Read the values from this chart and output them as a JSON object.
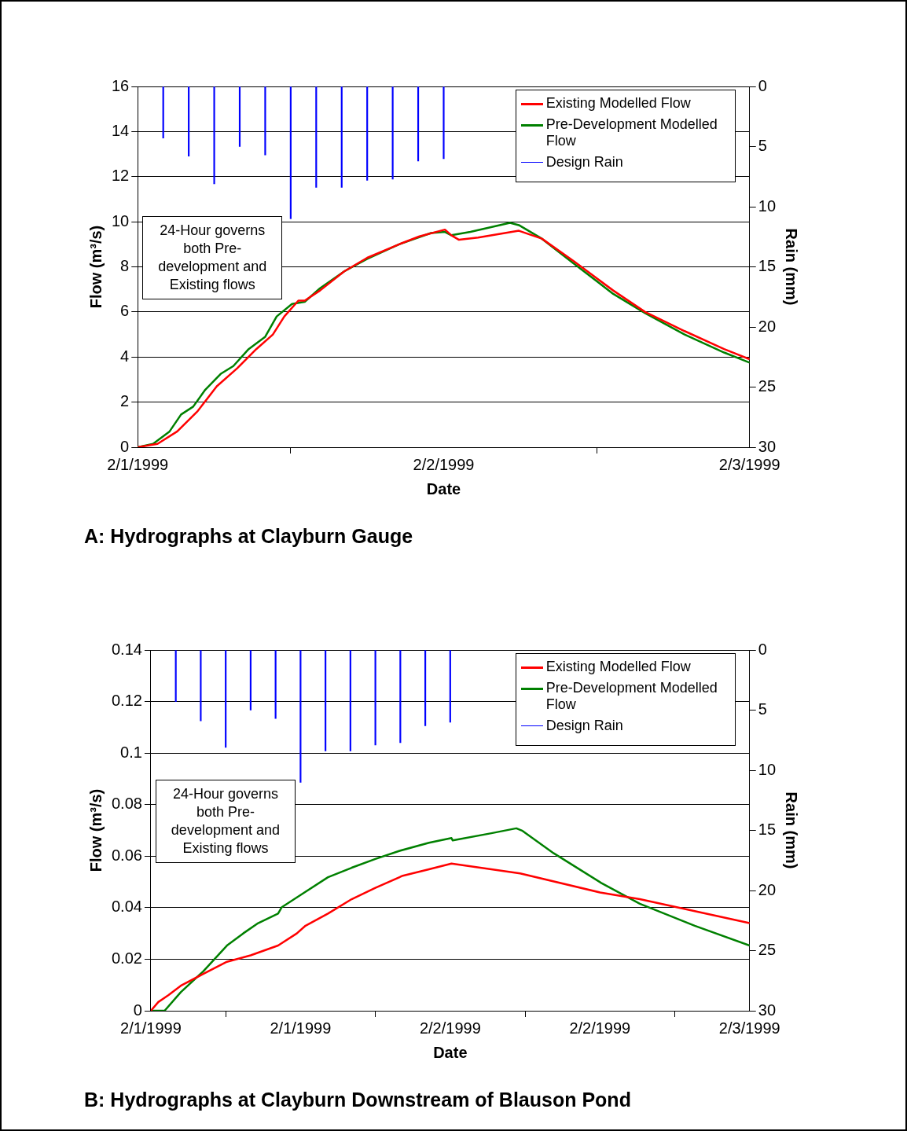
{
  "chart_data": [
    {
      "type": "line",
      "title": "A: Hydrographs at Clayburn Gauge",
      "xlabel": "Date",
      "ylabel": "Flow (m³/s)",
      "y2label": "Rain (mm)",
      "xlim": [
        "1999-02-01",
        "1999-02-03"
      ],
      "xticks": [
        {
          "value": "1999-02-01",
          "label": "2/1/1999"
        },
        {
          "value": "1999-02-02",
          "label": "2/2/1999"
        },
        {
          "value": "1999-02-03",
          "label": "2/3/1999"
        }
      ],
      "ylim": [
        0,
        16
      ],
      "yticks": [
        0,
        2,
        4,
        6,
        8,
        10,
        12,
        14,
        16
      ],
      "y2lim": [
        30,
        0
      ],
      "y2ticks": [
        0,
        5,
        10,
        15,
        20,
        25,
        30
      ],
      "grid": "y",
      "legend": "top right",
      "annotations": [
        "24-Hour governs both Pre-development and Existing flows"
      ],
      "series": [
        {
          "name": "Existing Modelled Flow",
          "color": "#ff0000",
          "x": [
            "1999-02-01T00:00",
            "1999-02-01T01:33",
            "1999-02-01T03:06",
            "1999-02-01T04:42",
            "1999-02-01T06:12",
            "1999-02-01T07:48",
            "1999-02-01T09:18",
            "1999-02-01T10:36",
            "1999-02-01T11:30",
            "1999-02-01T12:36",
            "1999-02-01T13:06",
            "1999-02-01T14:18",
            "1999-02-01T16:12",
            "1999-02-01T18:00",
            "1999-02-01T20:30",
            "1999-02-01T22:06",
            "1999-02-02T00:06",
            "1999-02-02T00:36",
            "1999-02-02T01:12",
            "1999-02-02T02:42",
            "1999-02-02T05:54",
            "1999-02-02T07:42",
            "1999-02-02T10:12",
            "1999-02-02T13:18",
            "1999-02-02T15:48",
            "1999-02-02T18:54",
            "1999-02-02T22:00",
            "1999-02-03T00:00"
          ],
          "values": [
            0,
            0.15,
            0.7,
            1.6,
            2.7,
            3.5,
            4.35,
            5.0,
            5.8,
            6.5,
            6.5,
            6.95,
            7.8,
            8.4,
            9.0,
            9.35,
            9.65,
            9.4,
            9.2,
            9.3,
            9.6,
            9.25,
            8.25,
            6.95,
            6.0,
            5.15,
            4.35,
            3.9
          ]
        },
        {
          "name": "Pre-Development Modelled Flow",
          "color": "#008000",
          "x": [
            "1999-02-01T00:00",
            "1999-02-01T01:12",
            "1999-02-01T02:30",
            "1999-02-01T03:24",
            "1999-02-01T04:21",
            "1999-02-01T05:18",
            "1999-02-01T06:30",
            "1999-02-01T07:30",
            "1999-02-01T08:42",
            "1999-02-01T10:00",
            "1999-02-01T10:54",
            "1999-02-01T12:06",
            "1999-02-01T13:06",
            "1999-02-01T14:18",
            "1999-02-01T16:12",
            "1999-02-01T18:00",
            "1999-02-01T20:30",
            "1999-02-01T23:00",
            "1999-02-02T00:06",
            "1999-02-02T00:36",
            "1999-02-02T02:06",
            "1999-02-02T05:12",
            "1999-02-02T05:54",
            "1999-02-02T07:42",
            "1999-02-02T10:12",
            "1999-02-02T13:18",
            "1999-02-02T15:48",
            "1999-02-02T18:54",
            "1999-02-02T22:00",
            "1999-02-03T00:00"
          ],
          "values": [
            0,
            0.15,
            0.7,
            1.45,
            1.8,
            2.55,
            3.25,
            3.6,
            4.35,
            4.9,
            5.8,
            6.35,
            6.45,
            7.05,
            7.8,
            8.35,
            9.0,
            9.5,
            9.55,
            9.4,
            9.55,
            9.95,
            9.85,
            9.25,
            8.15,
            6.8,
            5.95,
            5.0,
            4.2,
            3.75
          ]
        },
        {
          "name": "Design Rain",
          "type": "bar",
          "axis": "y2",
          "color": "#0000ff",
          "x": [
            "1999-02-01T02:00",
            "1999-02-01T04:00",
            "1999-02-01T06:00",
            "1999-02-01T08:00",
            "1999-02-01T10:00",
            "1999-02-01T12:00",
            "1999-02-01T14:00",
            "1999-02-01T16:00",
            "1999-02-01T18:00",
            "1999-02-01T20:00",
            "1999-02-01T22:00",
            "1999-02-02T00:00"
          ],
          "values": [
            4.3,
            5.8,
            8.1,
            5.0,
            5.7,
            11.0,
            8.4,
            8.4,
            7.8,
            7.7,
            6.2,
            6.0
          ]
        }
      ]
    },
    {
      "type": "line",
      "title": "B: Hydrographs at Clayburn Downstream of Blauson Pond",
      "xlabel": "Date",
      "ylabel": "Flow (m³/s)",
      "y2label": "Rain (mm)",
      "xlim": [
        "1999-02-01",
        "1999-02-03"
      ],
      "xticks": [
        {
          "value": "1999-02-01",
          "label": "2/1/1999"
        },
        {
          "value": "1999-02-01T12:00",
          "label": "2/1/1999"
        },
        {
          "value": "1999-02-02",
          "label": "2/2/1999"
        },
        {
          "value": "1999-02-02T12:00",
          "label": "2/2/1999"
        },
        {
          "value": "1999-02-03",
          "label": "2/3/1999"
        }
      ],
      "ylim": [
        0,
        0.14
      ],
      "yticks": [
        0,
        0.02,
        0.04,
        0.06,
        0.08,
        0.1,
        0.12,
        0.14
      ],
      "y2lim": [
        30,
        0
      ],
      "y2ticks": [
        0,
        5,
        10,
        15,
        20,
        25,
        30
      ],
      "grid": "y",
      "legend": "top right",
      "annotations": [
        "24-Hour governs both Pre-development and Existing flows"
      ],
      "series": [
        {
          "name": "Existing Modelled Flow",
          "color": "#ff0000",
          "x": [
            "1999-02-01T00:00",
            "1999-02-01T00:36",
            "1999-02-01T01:24",
            "1999-02-01T02:24",
            "1999-02-01T04:12",
            "1999-02-01T06:06",
            "1999-02-01T08:00",
            "1999-02-01T10:12",
            "1999-02-01T11:42",
            "1999-02-01T12:24",
            "1999-02-01T14:12",
            "1999-02-01T16:06",
            "1999-02-01T18:00",
            "1999-02-01T20:12",
            "1999-02-01T22:18",
            "1999-02-02T00:06",
            "1999-02-02T05:36",
            "1999-02-02T12:06",
            "1999-02-02T15:12",
            "1999-02-03T00:00"
          ],
          "values": [
            0,
            0.0034,
            0.006,
            0.0097,
            0.0143,
            0.019,
            0.0215,
            0.0253,
            0.03,
            0.033,
            0.0377,
            0.0433,
            0.0477,
            0.0524,
            0.0549,
            0.0571,
            0.0533,
            0.0458,
            0.0433,
            0.034
          ]
        },
        {
          "name": "Pre-Development Modelled Flow",
          "color": "#008000",
          "x": [
            "1999-02-01T00:00",
            "1999-02-01T01:06",
            "1999-02-01T02:24",
            "1999-02-01T04:12",
            "1999-02-01T06:06",
            "1999-02-01T07:24",
            "1999-02-01T08:36",
            "1999-02-01T10:12",
            "1999-02-01T10:30",
            "1999-02-01T12:00",
            "1999-02-01T14:12",
            "1999-02-01T16:06",
            "1999-02-01T18:00",
            "1999-02-01T19:54",
            "1999-02-01T22:18",
            "1999-02-02T00:06",
            "1999-02-02T00:12",
            "1999-02-02T03:18",
            "1999-02-02T05:18",
            "1999-02-02T05:48",
            "1999-02-02T08:18",
            "1999-02-02T12:06",
            "1999-02-02T15:12",
            "1999-02-02T19:36",
            "1999-02-03T00:00"
          ],
          "values": [
            0,
            0,
            0.0072,
            0.0153,
            0.0253,
            0.03,
            0.034,
            0.0377,
            0.0402,
            0.0449,
            0.0518,
            0.0555,
            0.0589,
            0.062,
            0.0652,
            0.067,
            0.0661,
            0.0689,
            0.0708,
            0.0698,
            0.0611,
            0.0496,
            0.0415,
            0.033,
            0.0253
          ]
        },
        {
          "name": "Design Rain",
          "type": "bar",
          "axis": "y2",
          "color": "#0000ff",
          "x": [
            "1999-02-01T02:00",
            "1999-02-01T04:00",
            "1999-02-01T06:00",
            "1999-02-01T08:00",
            "1999-02-01T10:00",
            "1999-02-01T12:00",
            "1999-02-01T14:00",
            "1999-02-01T16:00",
            "1999-02-01T18:00",
            "1999-02-01T20:00",
            "1999-02-01T22:00",
            "1999-02-02T00:00"
          ],
          "values": [
            4.3,
            5.9,
            8.1,
            5.0,
            5.7,
            11.0,
            8.4,
            8.4,
            7.9,
            7.7,
            6.3,
            6.0
          ]
        }
      ]
    }
  ]
}
